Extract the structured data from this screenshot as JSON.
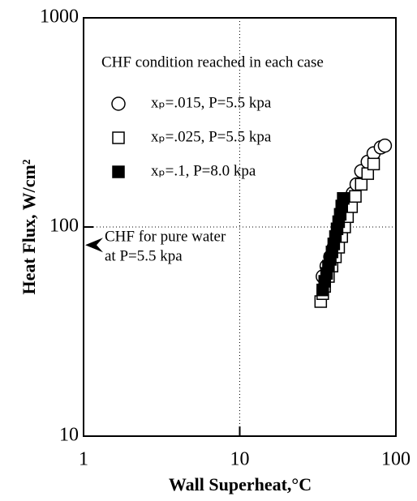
{
  "chart_data": {
    "type": "scatter",
    "x_label": "Wall Superheat,°C",
    "y_label": "Heat Flux,  W/cm²",
    "legend_title": "CHF condition reached in each case",
    "xscale": "log",
    "yscale": "log",
    "xlim": [
      1,
      100
    ],
    "ylim": [
      10,
      1000
    ],
    "xticks": [
      1,
      10,
      100
    ],
    "yticks": [
      10,
      100,
      1000
    ],
    "grid": true,
    "legend": "upper-right",
    "annotations": [
      {
        "text": [
          "CHF for pure water",
          "at P=5.5 kpa"
        ],
        "y": 82
      }
    ],
    "series": [
      {
        "name": "xₚ=.015, P=5.5 kpa",
        "marker": "circle",
        "color": "#000",
        "x": [
          34,
          36,
          38,
          40,
          42,
          44,
          46,
          48,
          50,
          53,
          56,
          60,
          66,
          72,
          80,
          85
        ],
        "values": [
          58,
          65,
          72,
          80,
          88,
          97,
          106,
          118,
          130,
          145,
          160,
          185,
          205,
          225,
          240,
          245
        ]
      },
      {
        "name": "xₚ=.025, P=5.5 kpa",
        "marker": "square",
        "color": "#000",
        "x": [
          33,
          34,
          35,
          37,
          39,
          41,
          43,
          45,
          47,
          49,
          52,
          55,
          60,
          66,
          72
        ],
        "values": [
          44,
          48,
          52,
          58,
          65,
          72,
          80,
          90,
          100,
          112,
          125,
          140,
          160,
          180,
          200
        ]
      },
      {
        "name": "xₚ=.1, P=8.0 kpa",
        "marker": "filled-square",
        "color": "#000",
        "x": [
          34,
          35,
          36,
          37,
          38,
          39,
          40,
          41,
          42,
          43,
          44,
          45,
          46
        ],
        "values": [
          50,
          55,
          60,
          65,
          70,
          76,
          83,
          90,
          98,
          106,
          115,
          126,
          137
        ]
      }
    ]
  }
}
